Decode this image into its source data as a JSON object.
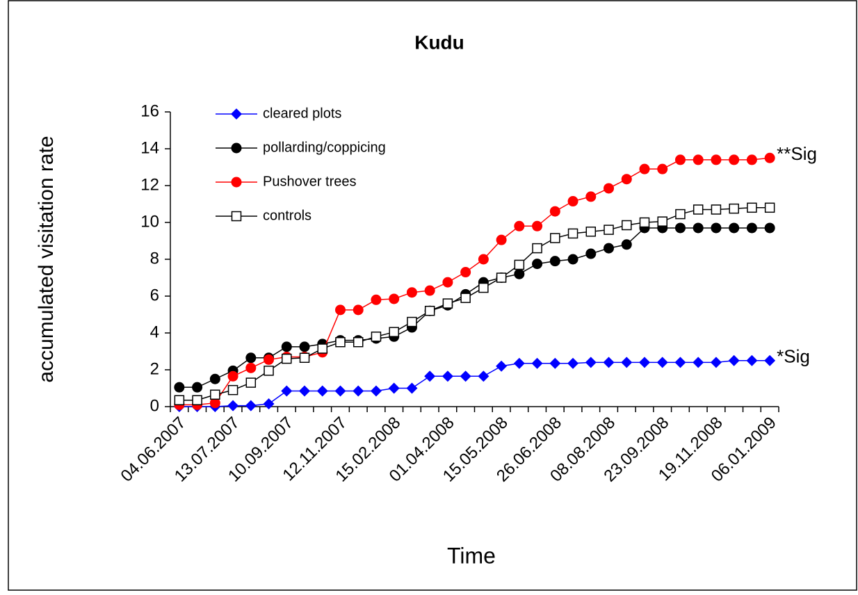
{
  "chart_data": {
    "type": "line",
    "title": "Kudu",
    "x_label": "Time",
    "y_label": "accumulated visitation rate",
    "categories": [
      "04.06.2007",
      null,
      null,
      "13.07.2007",
      null,
      null,
      "10.09.2007",
      null,
      null,
      "12.11.2007",
      null,
      null,
      "15.02.2008",
      null,
      null,
      "01.04.2008",
      null,
      null,
      "15.05.2008",
      null,
      null,
      "26.06.2008",
      null,
      null,
      "08.08.2008",
      null,
      null,
      "23.09.2008",
      null,
      null,
      "19.11.2008",
      null,
      null,
      "06.01.2009"
    ],
    "series": [
      {
        "name": "cleared plots",
        "color": "#0000ff",
        "marker": "diamond",
        "values": [
          0,
          0,
          0,
          0.05,
          0.05,
          0.15,
          0.85,
          0.85,
          0.85,
          0.85,
          0.85,
          0.85,
          1.0,
          1.0,
          1.65,
          1.65,
          1.65,
          1.65,
          2.2,
          2.35,
          2.35,
          2.35,
          2.35,
          2.4,
          2.4,
          2.4,
          2.4,
          2.4,
          2.4,
          2.4,
          2.4,
          2.5,
          2.5,
          2.5
        ]
      },
      {
        "name": "pollarding/coppicing",
        "color": "#000000",
        "marker": "circle",
        "values": [
          1.05,
          1.05,
          1.5,
          1.95,
          2.65,
          2.65,
          3.25,
          3.25,
          3.4,
          3.6,
          3.6,
          3.7,
          3.8,
          4.3,
          5.2,
          5.5,
          6.1,
          6.75,
          7.0,
          7.2,
          7.75,
          7.9,
          8.0,
          8.3,
          8.6,
          8.8,
          9.7,
          9.7,
          9.7,
          9.7,
          9.7,
          9.7,
          9.7,
          9.7
        ]
      },
      {
        "name": "Pushover trees",
        "color": "#ff0000",
        "marker": "circle",
        "values": [
          0.1,
          0.1,
          0.2,
          1.65,
          2.1,
          2.55,
          2.7,
          2.7,
          2.95,
          5.25,
          5.25,
          5.8,
          5.85,
          6.2,
          6.3,
          6.75,
          7.3,
          8.0,
          9.05,
          9.8,
          9.8,
          10.6,
          11.15,
          11.4,
          11.85,
          12.35,
          12.9,
          12.9,
          13.4,
          13.4,
          13.4,
          13.4,
          13.4,
          13.5
        ]
      },
      {
        "name": "controls",
        "color": "#000000",
        "marker": "square-open",
        "values": [
          0.35,
          0.35,
          0.65,
          0.9,
          1.3,
          1.95,
          2.6,
          2.65,
          3.15,
          3.5,
          3.5,
          3.8,
          4.05,
          4.6,
          5.2,
          5.6,
          5.9,
          6.45,
          7.0,
          7.7,
          8.6,
          9.15,
          9.4,
          9.5,
          9.6,
          9.85,
          10.0,
          10.05,
          10.45,
          10.7,
          10.7,
          10.75,
          10.8,
          10.8
        ]
      }
    ],
    "annotations": [
      {
        "text": "**Sig",
        "series": 2
      },
      {
        "text": "*Sig",
        "series": 0
      }
    ],
    "ylim": [
      0,
      16
    ],
    "yticks": [
      0,
      2,
      4,
      6,
      8,
      10,
      12,
      14,
      16
    ],
    "grid": false,
    "legend": "upper left"
  }
}
